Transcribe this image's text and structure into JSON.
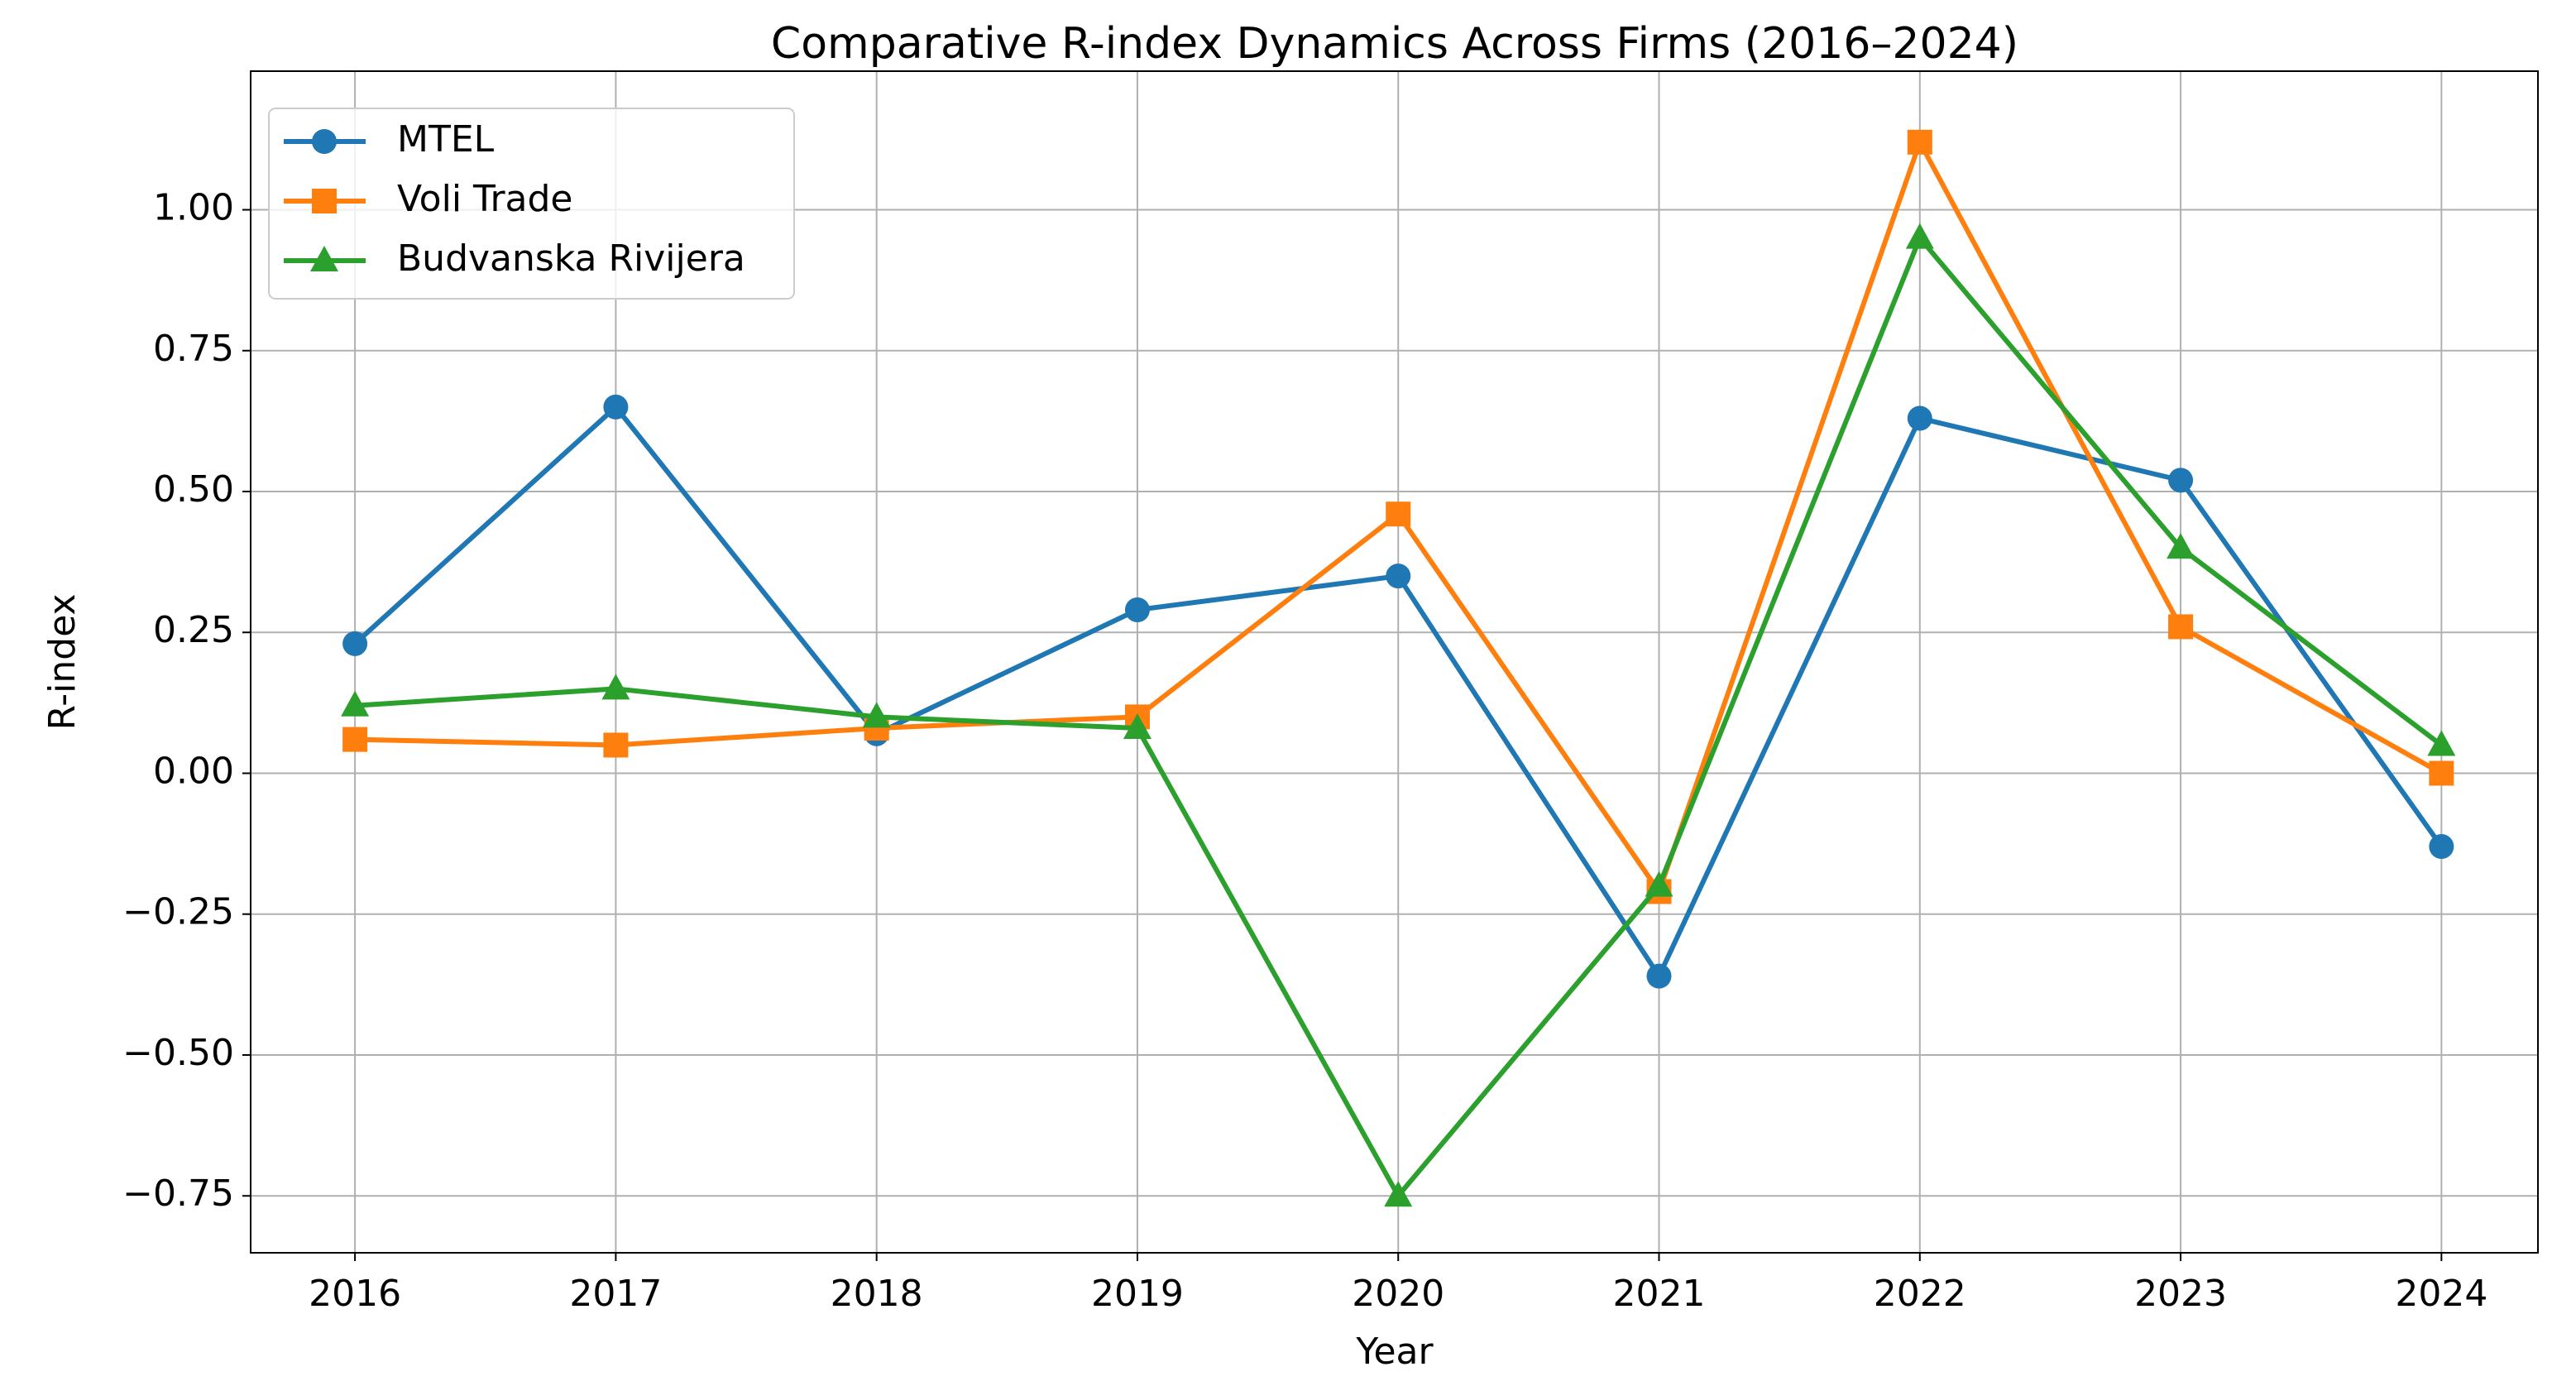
{
  "chart_data": {
    "type": "line",
    "title": "Comparative R-index Dynamics Across Firms (2016–2024)",
    "x_label": "Year",
    "y_label": "R-index",
    "x": [
      2016,
      2017,
      2018,
      2019,
      2020,
      2021,
      2022,
      2023,
      2024
    ],
    "series": [
      {
        "name": "MTEL",
        "color": "#1f77b4",
        "marker": "circle",
        "values": [
          0.23,
          0.65,
          0.07,
          0.29,
          0.35,
          -0.36,
          0.63,
          0.52,
          -0.13
        ]
      },
      {
        "name": "Voli Trade",
        "color": "#ff7f0e",
        "marker": "square",
        "values": [
          0.06,
          0.05,
          0.08,
          0.1,
          0.46,
          -0.21,
          1.12,
          0.26,
          0.0
        ]
      },
      {
        "name": "Budvanska Rivijera",
        "color": "#2ca02c",
        "marker": "triangle",
        "values": [
          0.12,
          0.15,
          0.1,
          0.08,
          -0.75,
          -0.2,
          0.95,
          0.4,
          0.05
        ]
      }
    ],
    "xlim": [
      2015.6,
      2024.37
    ],
    "ylim": [
      -0.851,
      1.246
    ],
    "xticks": [
      2016,
      2017,
      2018,
      2019,
      2020,
      2021,
      2022,
      2023,
      2024
    ],
    "yticks": [
      {
        "value": -0.75,
        "label": "−0.75"
      },
      {
        "value": -0.5,
        "label": "−0.50"
      },
      {
        "value": -0.25,
        "label": "−0.25"
      },
      {
        "value": 0,
        "label": "0.00"
      },
      0.25,
      {
        "value": 0.5,
        "label": "0.50"
      },
      0.75,
      {
        "value": 1,
        "label": "1.00"
      }
    ],
    "grid": true,
    "legend_loc": "upper left"
  }
}
